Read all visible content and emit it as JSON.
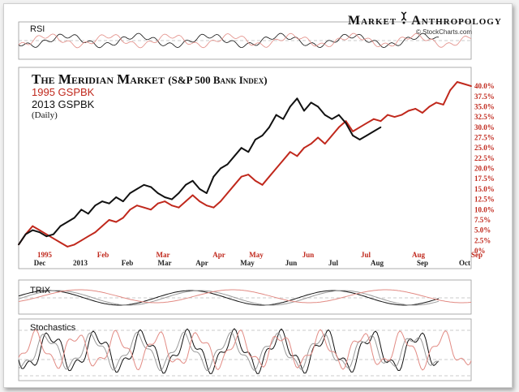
{
  "header": {
    "brand_left": "Market",
    "brand_right": "Anthropology",
    "credit": "© StockCharts.com"
  },
  "panels": {
    "rsi_label": "RSI",
    "trix_label": "TRIX",
    "stoch_label": "Stochastics"
  },
  "colors": {
    "series_1995": "#c0281c",
    "series_2013": "#111111",
    "light_1995": "#e28b84",
    "light_2013": "#999999"
  },
  "chart_data": {
    "type": "line",
    "title": "The Meridian Market",
    "subtitle": "(S&P 500 Bank Index)",
    "frequency": "(Daily)",
    "y_axis_side": "right",
    "y_ticks": [
      "0%",
      "2.5%",
      "5.0%",
      "7.5%",
      "10.0%",
      "12.5%",
      "15.0%",
      "17.5%",
      "20.0%",
      "22.5%",
      "25.0%",
      "27.5%",
      "30.0%",
      "32.5%",
      "35.0%",
      "37.5%",
      "40.0%"
    ],
    "ylim": [
      0,
      41
    ],
    "x_ticks_1995": [
      "1995",
      "Feb",
      "Mar",
      "Apr",
      "May",
      "Jun",
      "Jul",
      "Aug",
      "Sep"
    ],
    "x_ticks_2013": [
      "Dec",
      "2013",
      "Feb",
      "Mar",
      "Apr",
      "May",
      "Jun",
      "Jul",
      "Aug",
      "Sep",
      "Oct"
    ],
    "series": [
      {
        "name": "1995 GSPBK",
        "color": "#c0281c",
        "x": [
          0,
          4,
          8,
          12,
          16,
          20,
          24,
          28,
          32,
          36,
          40,
          44,
          48,
          52,
          56,
          60,
          64,
          68,
          72,
          76,
          80,
          84,
          88,
          92,
          96,
          100,
          104,
          108,
          112,
          116,
          120,
          124,
          128,
          132,
          136,
          140,
          144,
          148,
          152,
          156,
          160,
          164,
          168,
          172,
          176,
          180,
          184,
          188,
          192,
          196,
          200,
          204,
          208,
          212,
          216,
          220,
          224,
          228,
          232,
          236,
          240,
          244,
          248,
          252,
          256,
          260
        ],
        "values": [
          1.5,
          4,
          6,
          5,
          4,
          3,
          2,
          1,
          1.5,
          2.5,
          3.5,
          4.5,
          6,
          7.5,
          7,
          8,
          10,
          11,
          10.5,
          10,
          11.5,
          12,
          11,
          10.5,
          12,
          13.5,
          12,
          11,
          10.5,
          12,
          14,
          16,
          18,
          18.5,
          17,
          16,
          18,
          20,
          22,
          24,
          23,
          25,
          26,
          27.5,
          26,
          28,
          30,
          31.5,
          29,
          30,
          31,
          32,
          31.5,
          33,
          32.5,
          33,
          34,
          34.5,
          33.5,
          35,
          36,
          35.5,
          39,
          41,
          40.5,
          40
        ]
      },
      {
        "name": "2013 GSPBK",
        "color": "#111111",
        "x": [
          0,
          4,
          8,
          12,
          16,
          20,
          24,
          28,
          32,
          36,
          40,
          44,
          48,
          52,
          56,
          60,
          64,
          68,
          72,
          76,
          80,
          84,
          88,
          92,
          96,
          100,
          104,
          108,
          112,
          116,
          120,
          124,
          128,
          132,
          136,
          140,
          144,
          148,
          152,
          156,
          160,
          164,
          168,
          172,
          176,
          180,
          184,
          188,
          192,
          196,
          200,
          204,
          208
        ],
        "values": [
          1.5,
          4,
          5,
          4.5,
          3.5,
          4,
          6,
          7,
          8,
          10,
          9,
          11,
          12,
          11.5,
          13,
          12,
          14,
          15,
          16,
          15.5,
          14,
          13,
          12.5,
          14,
          16,
          17,
          15,
          14,
          18,
          20,
          21,
          23,
          25,
          24,
          27,
          28,
          30,
          33,
          32,
          35,
          37,
          34,
          36,
          35,
          33,
          32,
          33,
          31,
          28,
          27,
          28,
          29,
          30
        ]
      }
    ],
    "x_unit": "trading days from start"
  }
}
